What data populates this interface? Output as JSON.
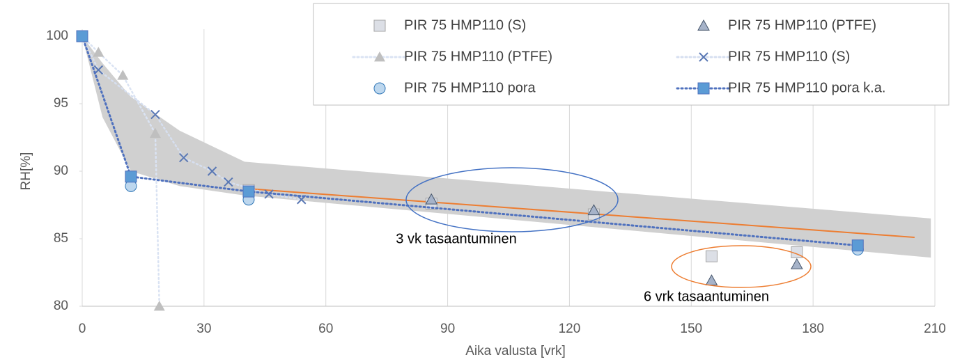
{
  "chart_data": {
    "type": "scatter",
    "x_label": "Aika valusta [vrk]",
    "y_label": "RH[%]",
    "xlim": [
      0,
      210
    ],
    "xticks": [
      0,
      30,
      60,
      90,
      120,
      150,
      180,
      210
    ],
    "ylim": [
      80,
      100
    ],
    "yticks": [
      80,
      85,
      90,
      95,
      100
    ],
    "grid": "x",
    "legend": "top-right",
    "series": [
      {
        "name": "PIR 75 HMP110 (S)",
        "marker": "square",
        "color": "#dcdfe6",
        "edge": "#a5a5a5",
        "line": null,
        "x": [
          0,
          12,
          41,
          86,
          126,
          155,
          176
        ],
        "values": [
          100,
          89.6,
          88.6,
          87.6,
          86.8,
          83.7,
          84.0
        ]
      },
      {
        "name": "PIR 75 HMP110 (PTFE)",
        "marker": "triangle",
        "color": "#a6b3c9",
        "edge": "#44546a",
        "line": null,
        "x": [
          86,
          126,
          155,
          176
        ],
        "values": [
          87.9,
          87.1,
          81.9,
          83.1
        ]
      },
      {
        "name": "PIR 75 HMP110 (PTFE)",
        "marker": "triangle",
        "color": "#bfbfbf",
        "edge": "none",
        "line": "#dae3f3",
        "x": [
          0,
          4,
          10,
          18,
          19
        ],
        "values": [
          100,
          98.8,
          97.1,
          92.8,
          80
        ]
      },
      {
        "name": "PIR 75 HMP110 (S)",
        "marker": "x",
        "color": "#5a78b4",
        "edge": "none",
        "line": "#d6dff0",
        "x": [
          0,
          4,
          18,
          25,
          32,
          36,
          46,
          54
        ],
        "values": [
          100,
          97.5,
          94.2,
          91.0,
          90.0,
          89.2,
          88.3,
          87.9
        ]
      },
      {
        "name": "PIR 75 HMP110 pora",
        "marker": "circle",
        "color": "#bdd7ee",
        "edge": "#2e75b6",
        "line": null,
        "x": [
          0,
          12,
          41,
          191
        ],
        "values": [
          100,
          88.9,
          87.9,
          84.2
        ]
      },
      {
        "name": "PIR 75 HMP110 pora k.a.",
        "marker": "square",
        "color": "#5b9bd5",
        "edge": "#4f71be",
        "line": "#4f71be",
        "x": [
          0,
          12,
          41,
          191
        ],
        "values": [
          100,
          89.6,
          88.5,
          84.5
        ]
      }
    ],
    "trendline": {
      "color": "#ed7d31",
      "x": [
        41,
        205
      ],
      "values": [
        88.7,
        85.1
      ]
    },
    "band": {
      "color": "#d0d0d0",
      "x": [
        0,
        5,
        12,
        24,
        40,
        209
      ],
      "upper": [
        100,
        98,
        95.5,
        93,
        90.7,
        86.5
      ],
      "lower": [
        100,
        94,
        90,
        88.9,
        88.2,
        83.6
      ]
    },
    "annotations": [
      "3 vk tasaantuminen",
      "6 vrk tasaantuminen"
    ]
  }
}
